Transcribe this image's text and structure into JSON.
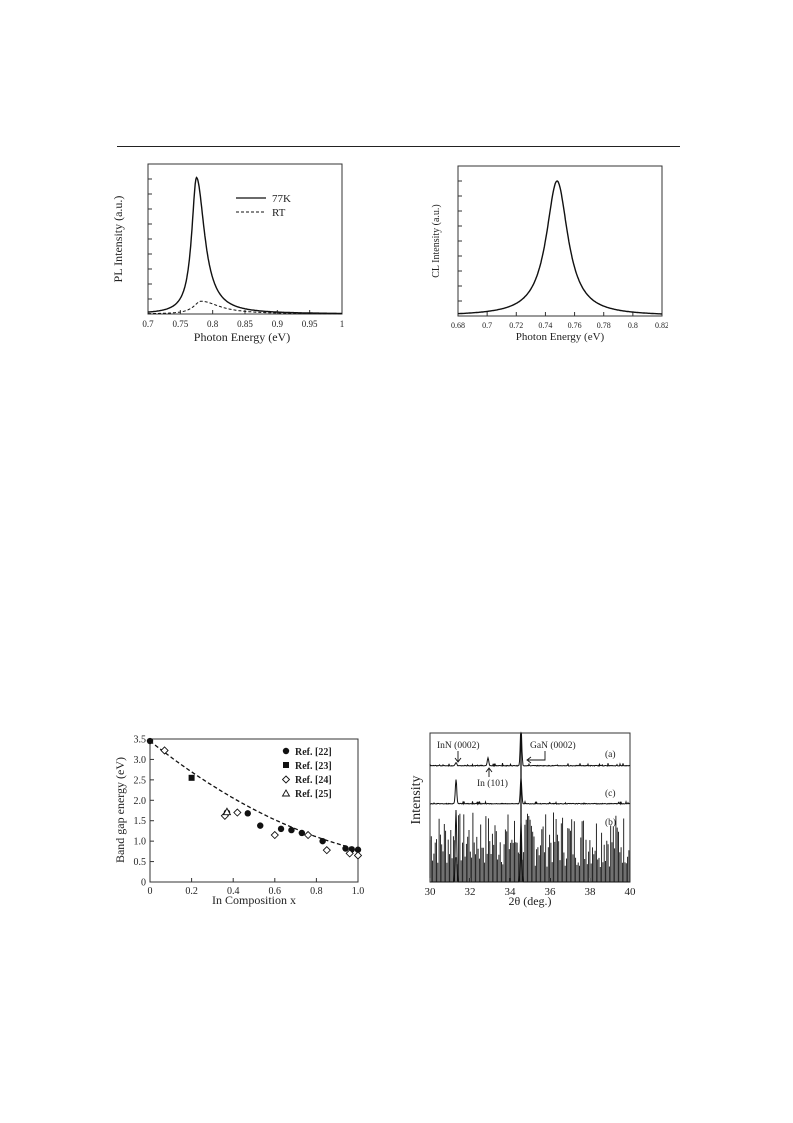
{
  "chart_data": [
    {
      "type": "line",
      "xlabel": "Photon Energy (eV)",
      "ylabel": "PL Intensity (a.u.)",
      "xlim": [
        0.7,
        1.0
      ],
      "ylim": [
        0,
        1.0
      ],
      "xticks": [
        "0.7",
        "0.75",
        "0.8",
        "0.85",
        "0.9",
        "0.95",
        "1"
      ],
      "tick_values": [
        0.7,
        0.75,
        0.8,
        0.85,
        0.9,
        0.95,
        1.0
      ],
      "legend_position": "top-right",
      "series": [
        {
          "name": "77K",
          "style": "solid",
          "peak_x": 0.775,
          "peak_y": 0.91,
          "hwhm_left": 0.009,
          "hwhm_right": 0.015
        },
        {
          "name": "RT",
          "style": "dashed",
          "peak_x": 0.782,
          "peak_y": 0.085,
          "hwhm_left": 0.014,
          "hwhm_right": 0.035
        }
      ]
    },
    {
      "type": "line",
      "xlabel": "Photon Energy (eV)",
      "ylabel": "CL Intensity (a.u.)",
      "xlim": [
        0.68,
        0.82
      ],
      "ylim": [
        0,
        1.0
      ],
      "xticks": [
        "0.68",
        "0.7",
        "0.72",
        "0.74",
        "0.76",
        "0.78",
        "0.8",
        "0.82"
      ],
      "tick_values": [
        0.68,
        0.7,
        0.72,
        0.74,
        0.76,
        0.78,
        0.8,
        0.82
      ],
      "series": [
        {
          "name": "",
          "style": "solid",
          "peak_x": 0.748,
          "peak_y": 0.9,
          "hwhm": 0.009
        }
      ]
    },
    {
      "type": "scatter",
      "xlabel": "In Composition x",
      "ylabel": "Band gap energy (eV)",
      "xlim": [
        0,
        1.0
      ],
      "ylim": [
        0,
        3.5
      ],
      "xticks": [
        "0",
        "0.2",
        "0.4",
        "0.6",
        "0.8",
        "1.0"
      ],
      "x_tick_values": [
        0,
        0.2,
        0.4,
        0.6,
        0.8,
        1.0
      ],
      "yticks": [
        "0",
        "0.5",
        "1.0",
        "1.5",
        "2.0",
        "2.5",
        "3.0",
        "3.5"
      ],
      "y_tick_values": [
        0,
        0.5,
        1.0,
        1.5,
        2.0,
        2.5,
        3.0,
        3.5
      ],
      "legend_position": "top-right",
      "series": [
        {
          "name": "Ref. [22]",
          "marker": "filled-circle",
          "x": [
            0.0,
            0.37,
            0.47,
            0.53,
            0.63,
            0.68,
            0.73,
            0.83,
            0.94,
            0.97,
            1.0
          ],
          "y": [
            3.45,
            1.7,
            1.68,
            1.38,
            1.3,
            1.27,
            1.2,
            1.0,
            0.82,
            0.8,
            0.79
          ]
        },
        {
          "name": "Ref. [23]",
          "marker": "filled-square",
          "x": [
            0.2
          ],
          "y": [
            2.55
          ]
        },
        {
          "name": "Ref. [24]",
          "marker": "open-diamond",
          "x": [
            0.07,
            0.36,
            0.42,
            0.6,
            0.76,
            0.85,
            0.96,
            1.0
          ],
          "y": [
            3.22,
            1.62,
            1.7,
            1.15,
            1.15,
            0.78,
            0.7,
            0.65
          ]
        },
        {
          "name": "Ref. [25]",
          "marker": "open-triangle",
          "x": [
            0.37
          ],
          "y": [
            1.72
          ]
        }
      ],
      "fit": {
        "style": "dashed",
        "a": 3.45,
        "b": 0.8,
        "c": 1.4
      }
    },
    {
      "type": "line",
      "xlabel": "2θ (deg.)",
      "ylabel": "Intensity",
      "xlim": [
        30,
        40
      ],
      "xticks": [
        "30",
        "32",
        "34",
        "36",
        "38",
        "40"
      ],
      "tick_values": [
        30,
        32,
        34,
        36,
        38,
        40
      ],
      "annotations": {
        "inn": "InN (0002)",
        "gan": "GaN (0002)",
        "in101": "In (101)"
      },
      "series": [
        {
          "name": "(a)",
          "peaks": [
            {
              "x": 31.3,
              "h": 0.08
            },
            {
              "x": 32.9,
              "h": 0.2
            },
            {
              "x": 34.55,
              "h": 1.0
            }
          ]
        },
        {
          "name": "(c)",
          "peaks": [
            {
              "x": 31.3,
              "h": 0.6
            },
            {
              "x": 34.55,
              "h": 0.65
            }
          ]
        },
        {
          "name": "(b)",
          "peaks": [
            {
              "x": 31.3,
              "h": 0.9
            },
            {
              "x": 34.55,
              "h": 0.75
            }
          ]
        }
      ]
    }
  ]
}
